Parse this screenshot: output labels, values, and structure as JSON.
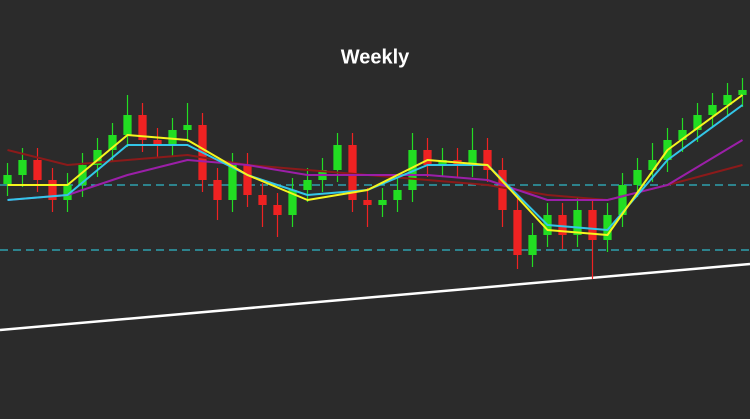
{
  "chart_data": {
    "type": "candlestick",
    "title": "Weekly",
    "background": "#2b2b2b",
    "up_color": "#22dd22",
    "down_color": "#ee2222",
    "xlim": [
      -0.5,
      49.5
    ],
    "ylim": [
      0,
      419
    ],
    "open": [
      235,
      244,
      259,
      239,
      219,
      234,
      254,
      269,
      284,
      304,
      279,
      274,
      289,
      294,
      239,
      219,
      254,
      224,
      214,
      204,
      229,
      239,
      249,
      274,
      219,
      214,
      219,
      229,
      269,
      254,
      259,
      254,
      269,
      249,
      209,
      164,
      184,
      204,
      184,
      209,
      179,
      204,
      234,
      249,
      259,
      279,
      289,
      304,
      314,
      324
    ],
    "high": [
      256,
      271,
      271,
      251,
      246,
      266,
      281,
      296,
      324,
      316,
      291,
      301,
      316,
      306,
      251,
      266,
      266,
      236,
      226,
      241,
      251,
      261,
      286,
      286,
      231,
      231,
      241,
      286,
      281,
      271,
      271,
      291,
      281,
      261,
      221,
      196,
      216,
      216,
      221,
      221,
      216,
      246,
      261,
      276,
      291,
      301,
      316,
      326,
      336,
      341
    ],
    "low": [
      223,
      232,
      227,
      207,
      207,
      222,
      242,
      257,
      272,
      267,
      262,
      262,
      277,
      227,
      199,
      207,
      212,
      192,
      182,
      192,
      217,
      227,
      237,
      207,
      192,
      202,
      207,
      217,
      242,
      242,
      242,
      242,
      237,
      192,
      150,
      152,
      172,
      170,
      172,
      140,
      167,
      192,
      222,
      237,
      247,
      267,
      277,
      292,
      302,
      312
    ],
    "close": [
      244,
      259,
      239,
      219,
      234,
      254,
      269,
      284,
      304,
      279,
      274,
      289,
      294,
      239,
      219,
      254,
      224,
      214,
      204,
      229,
      239,
      249,
      274,
      219,
      214,
      219,
      229,
      269,
      254,
      259,
      254,
      269,
      249,
      209,
      164,
      184,
      204,
      184,
      209,
      179,
      204,
      234,
      249,
      259,
      279,
      289,
      304,
      314,
      324,
      329
    ],
    "overlays": [
      {
        "color": "#8b1a1a",
        "x": [
          0,
          4,
          8,
          12,
          16,
          20,
          24,
          28,
          32,
          36,
          40,
          44,
          49
        ],
        "values": [
          269,
          254,
          259,
          264,
          254,
          249,
          244,
          239,
          234,
          224,
          219,
          234,
          254
        ]
      },
      {
        "color": "#9b1fa8",
        "x": [
          0,
          4,
          8,
          12,
          16,
          20,
          24,
          28,
          32,
          36,
          40,
          44,
          49
        ],
        "values": [
          219,
          224,
          244,
          259,
          254,
          244,
          244,
          244,
          239,
          219,
          219,
          234,
          279
        ]
      },
      {
        "color": "#33c6e8",
        "x": [
          0,
          4,
          8,
          12,
          16,
          20,
          24,
          28,
          32,
          36,
          40,
          44,
          49
        ],
        "values": [
          219,
          224,
          274,
          274,
          244,
          224,
          229,
          254,
          254,
          194,
          189,
          259,
          314
        ]
      },
      {
        "color": "#f5f51e",
        "x": [
          0,
          4,
          8,
          12,
          16,
          20,
          24,
          28,
          32,
          36,
          40,
          44,
          49
        ],
        "values": [
          234,
          234,
          284,
          279,
          244,
          219,
          229,
          259,
          254,
          189,
          184,
          269,
          324
        ]
      }
    ],
    "hlines": [
      {
        "value": 234,
        "color": "#2fb8c8"
      },
      {
        "value": 169,
        "color": "#2fb8c8"
      }
    ],
    "trendline": {
      "color": "#ffffff",
      "x": [
        -0.5,
        49.5
      ],
      "values": [
        89,
        155
      ]
    }
  }
}
